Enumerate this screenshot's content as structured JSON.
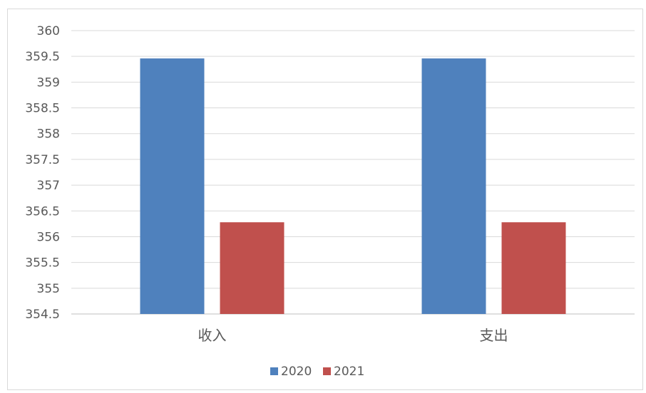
{
  "chart_data": {
    "type": "bar",
    "categories": [
      "收入",
      "支出"
    ],
    "series": [
      {
        "name": "2020",
        "values": [
          359.46,
          359.46
        ],
        "color": "#4f81bd"
      },
      {
        "name": "2021",
        "values": [
          356.28,
          356.28
        ],
        "color": "#c0504d"
      }
    ],
    "ylim": [
      354.5,
      360
    ],
    "yticks": [
      "354.5",
      "355",
      "355.5",
      "356",
      "356.5",
      "357",
      "357.5",
      "358",
      "358.5",
      "359",
      "359.5",
      "360"
    ],
    "grid": true,
    "legend_position": "bottom"
  }
}
